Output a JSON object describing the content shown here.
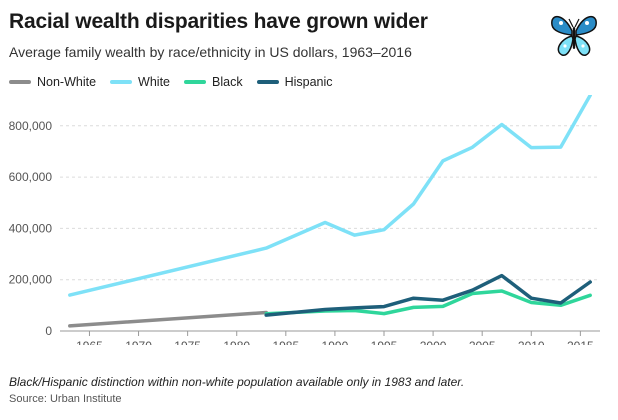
{
  "title": "Racial wealth disparities have grown wider",
  "subtitle": "Average family wealth by race/ethnicity in US dollars, 1963–2016",
  "note": "Black/Hispanic distinction within non-white population available only in 1983 and later.",
  "source": "Source: Urban Institute",
  "logo": {
    "icon": "butterfly-logo-icon"
  },
  "chart_data": {
    "type": "line",
    "title": "Racial wealth disparities have grown wider",
    "subtitle": "Average family wealth by race/ethnicity in US dollars, 1963–2016",
    "xlabel": "",
    "ylabel": "",
    "xlim": [
      1962,
      2017
    ],
    "ylim": [
      0,
      920000
    ],
    "x_ticks": [
      1965,
      1970,
      1975,
      1980,
      1985,
      1990,
      1995,
      2000,
      2005,
      2010,
      2015
    ],
    "x_tick_labels": [
      "1965",
      "1970",
      "1975",
      "1980",
      "1985",
      "1990",
      "1995",
      "2000",
      "2005",
      "2010",
      "2015"
    ],
    "y_ticks": [
      0,
      200000,
      400000,
      600000,
      800000
    ],
    "y_tick_labels": [
      "0",
      "200,000",
      "400,000",
      "600,000",
      "800,000"
    ],
    "grid": true,
    "legend_position": "top-left",
    "series": [
      {
        "name": "Non-White",
        "color": "#8c8c8c",
        "points": [
          [
            1963,
            20000
          ],
          [
            1983,
            72000
          ]
        ]
      },
      {
        "name": "White",
        "color": "#7ee1f7",
        "points": [
          [
            1963,
            140000
          ],
          [
            1983,
            323000
          ],
          [
            1989,
            423000
          ],
          [
            1992,
            374000
          ],
          [
            1995,
            395000
          ],
          [
            1998,
            495000
          ],
          [
            2001,
            663000
          ],
          [
            2004,
            716000
          ],
          [
            2007,
            805000
          ],
          [
            2010,
            715000
          ],
          [
            2013,
            717000
          ],
          [
            2016,
            919000
          ]
        ]
      },
      {
        "name": "Black",
        "color": "#2fd69b",
        "points": [
          [
            1983,
            67000
          ],
          [
            1989,
            78000
          ],
          [
            1992,
            80000
          ],
          [
            1995,
            68000
          ],
          [
            1998,
            92000
          ],
          [
            2001,
            96000
          ],
          [
            2004,
            146000
          ],
          [
            2007,
            156000
          ],
          [
            2010,
            111000
          ],
          [
            2013,
            100000
          ],
          [
            2016,
            139000
          ]
        ]
      },
      {
        "name": "Hispanic",
        "color": "#1e5f7a",
        "points": [
          [
            1983,
            62000
          ],
          [
            1989,
            84000
          ],
          [
            1992,
            90000
          ],
          [
            1995,
            95000
          ],
          [
            1998,
            128000
          ],
          [
            2001,
            120000
          ],
          [
            2004,
            159000
          ],
          [
            2007,
            216000
          ],
          [
            2010,
            128000
          ],
          [
            2013,
            109000
          ],
          [
            2016,
            191000
          ]
        ]
      }
    ]
  }
}
